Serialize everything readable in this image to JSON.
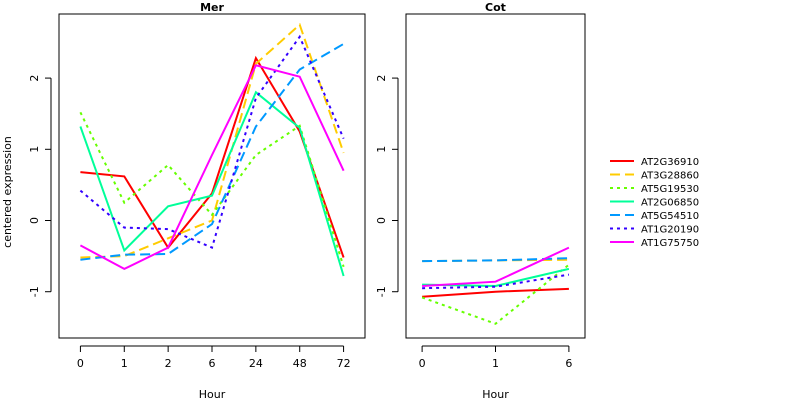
{
  "ylabel": "centered expression",
  "legend": {
    "position": "right",
    "items": [
      {
        "name": "AT2G36910",
        "color": "#ff0000",
        "dash": "solid"
      },
      {
        "name": "AT3G28860",
        "color": "#ffcc00",
        "dash": "longdash"
      },
      {
        "name": "AT5G19530",
        "color": "#66ff00",
        "dash": "dotted"
      },
      {
        "name": "AT2G06850",
        "color": "#00ff99",
        "dash": "solid"
      },
      {
        "name": "AT5G54510",
        "color": "#0099ff",
        "dash": "longdash"
      },
      {
        "name": "AT1G20190",
        "color": "#3300ff",
        "dash": "dotted"
      },
      {
        "name": "AT1G75750",
        "color": "#ff00ff",
        "dash": "solid"
      }
    ]
  },
  "chart_data": [
    {
      "type": "line",
      "title": "Mer",
      "xlabel": "Hour",
      "ylabel": "centered expression",
      "categories": [
        "0",
        "1",
        "2",
        "6",
        "24",
        "48",
        "72"
      ],
      "ylim": [
        -1.65,
        2.9
      ],
      "yticks": [
        -1,
        0,
        1,
        2
      ],
      "grid": false,
      "series": [
        {
          "name": "AT2G36910",
          "values": [
            0.68,
            0.62,
            -0.38,
            0.38,
            2.28,
            1.25,
            -0.52
          ]
        },
        {
          "name": "AT3G28860",
          "values": [
            -0.52,
            -0.5,
            -0.25,
            0.0,
            2.2,
            2.75,
            0.95
          ]
        },
        {
          "name": "AT5G19530",
          "values": [
            1.52,
            0.25,
            0.78,
            0.08,
            0.92,
            1.33,
            -0.65
          ]
        },
        {
          "name": "AT2G06850",
          "values": [
            1.32,
            -0.42,
            0.2,
            0.35,
            1.8,
            1.3,
            -0.78
          ]
        },
        {
          "name": "AT5G54510",
          "values": [
            -0.55,
            -0.48,
            -0.47,
            -0.05,
            1.32,
            2.12,
            2.48
          ]
        },
        {
          "name": "AT1G20190",
          "values": [
            0.42,
            -0.1,
            -0.12,
            -0.38,
            1.72,
            2.58,
            1.15
          ]
        },
        {
          "name": "AT1G75750",
          "values": [
            -0.35,
            -0.68,
            -0.38,
            0.92,
            2.18,
            2.02,
            0.7
          ]
        }
      ]
    },
    {
      "type": "line",
      "title": "Cot",
      "xlabel": "Hour",
      "categories": [
        "0",
        "1",
        "6"
      ],
      "ylim": [
        -1.65,
        2.9
      ],
      "yticks": [
        -1,
        0,
        1,
        2
      ],
      "grid": false,
      "series": [
        {
          "name": "AT2G36910",
          "values": [
            -1.07,
            -1.0,
            -0.96
          ]
        },
        {
          "name": "AT3G28860",
          "values": [
            -0.57,
            -0.56,
            -0.55
          ]
        },
        {
          "name": "AT5G19530",
          "values": [
            -1.08,
            -1.45,
            -0.62
          ]
        },
        {
          "name": "AT2G06850",
          "values": [
            -0.9,
            -0.92,
            -0.68
          ]
        },
        {
          "name": "AT5G54510",
          "values": [
            -0.57,
            -0.56,
            -0.53
          ]
        },
        {
          "name": "AT1G20190",
          "values": [
            -0.95,
            -0.93,
            -0.76
          ]
        },
        {
          "name": "AT1G75750",
          "values": [
            -0.92,
            -0.86,
            -0.38
          ]
        }
      ]
    }
  ]
}
